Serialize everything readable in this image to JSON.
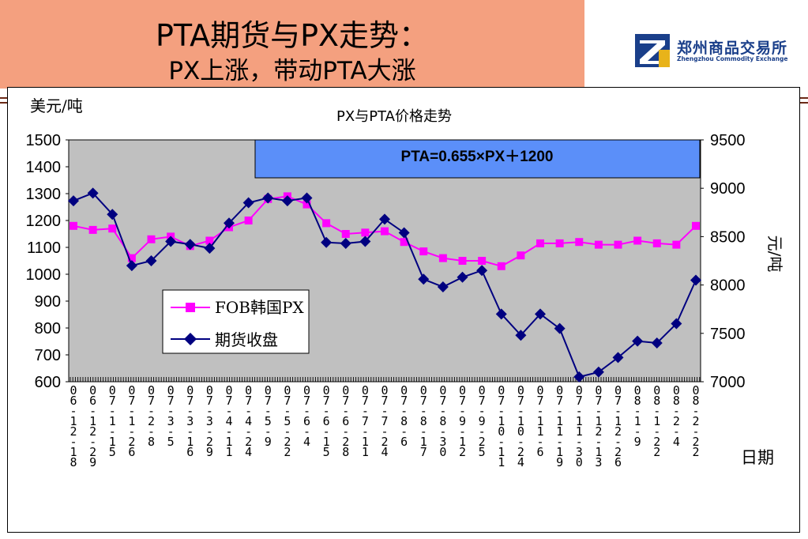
{
  "slide": {
    "title_main": "PTA期货与PX走势：",
    "title_sub": "PX上涨，带动PTA大涨"
  },
  "logo": {
    "name_cn": "郑州商品交易所",
    "name_en": "Zhengzhou Commodity Exchange"
  },
  "colors": {
    "title_band": "#f4a07f",
    "plot_bg": "#c0c0c0",
    "px_series": "#ff00ff",
    "futures_series": "#000080",
    "formula_bg": "#5b8ff9",
    "logo_blue": "#1a3f8a"
  },
  "chart_data": {
    "type": "line",
    "title": "PX与PTA价格走势",
    "annotation": "PTA=0.655×PX＋1200",
    "y_left_unit": "美元/吨",
    "y_right_unit": "元/吨",
    "xlabel": "日期",
    "ylim_left": [
      600,
      1500
    ],
    "yticks_left": [
      600,
      700,
      800,
      900,
      1000,
      1100,
      1200,
      1300,
      1400,
      1500
    ],
    "ylim_right": [
      7000,
      9500
    ],
    "yticks_right": [
      7000,
      7500,
      8000,
      8500,
      9000,
      9500
    ],
    "categories": [
      "06-12-18",
      "06-12-29",
      "07-1-15",
      "07-1-26",
      "07-2-8",
      "07-3-5",
      "07-3-16",
      "07-3-29",
      "07-4-11",
      "07-4-24",
      "07-5-9",
      "07-5-22",
      "07-6-4",
      "07-6-15",
      "07-6-28",
      "07-7-11",
      "07-7-24",
      "07-8-6",
      "07-8-17",
      "07-8-30",
      "07-9-12",
      "07-9-25",
      "07-10-11",
      "07-10-24",
      "07-11-6",
      "07-11-19",
      "07-11-30",
      "07-12-13",
      "07-12-26",
      "08-1-9",
      "08-1-22",
      "08-2-4",
      "08-2-22"
    ],
    "legend_position": "lower-left",
    "grid": false,
    "series": [
      {
        "name": "FOB韩国PX",
        "axis": "left",
        "values": [
          1180,
          1165,
          1170,
          1060,
          1130,
          1140,
          1105,
          1125,
          1175,
          1200,
          1280,
          1290,
          1260,
          1190,
          1150,
          1155,
          1160,
          1120,
          1085,
          1060,
          1050,
          1050,
          1030,
          1070,
          1115,
          1115,
          1120,
          1110,
          1110,
          1125,
          1115,
          1110,
          1180
        ]
      },
      {
        "name": "期货收盘",
        "axis": "right",
        "values": [
          8870,
          8950,
          8730,
          8200,
          8250,
          8450,
          8420,
          8380,
          8640,
          8850,
          8900,
          8870,
          8900,
          8440,
          8430,
          8450,
          8680,
          8540,
          8060,
          7980,
          8080,
          8150,
          7700,
          7480,
          7700,
          7550,
          7050,
          7100,
          7250,
          7420,
          7400,
          7600,
          8050
        ]
      }
    ]
  }
}
